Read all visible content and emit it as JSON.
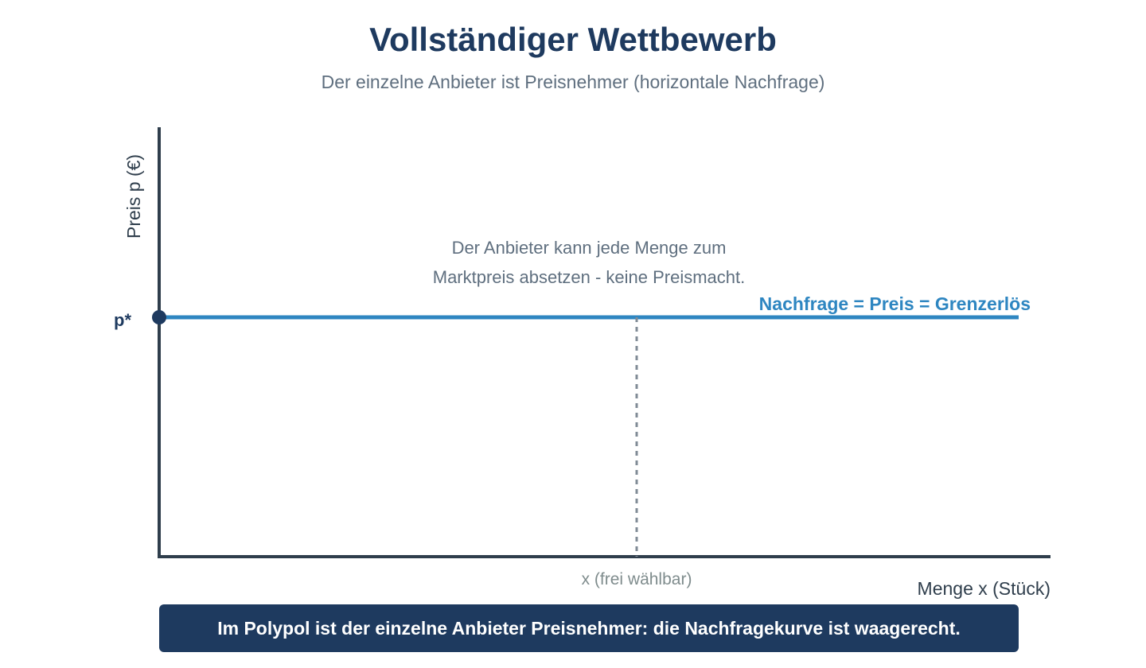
{
  "title": "Vollständiger Wettbewerb",
  "subtitle": "Der einzelne Anbieter ist Preisnehmer (horizontale Nachfrage)",
  "chart_data": {
    "type": "line",
    "ylabel": "Preis p (€)",
    "xlabel": "Menge x (Stück)",
    "y_tick_label": "p*",
    "x_tick_label": "x (frei wählbar)",
    "series": [
      {
        "name": "Nachfrage = Preis = Grenzerlös",
        "shape": "horizontal",
        "color": "#2e86c1"
      }
    ],
    "annotation": [
      "Der Anbieter kann jede Menge zum",
      "Marktpreis absetzen - keine Preismacht."
    ],
    "axis_color": "#2f3e4c",
    "grid": false
  },
  "footer": {
    "text": "Im Polypol ist der einzelne Anbieter Preisnehmer: die Nachfragekurve ist waagerecht."
  }
}
